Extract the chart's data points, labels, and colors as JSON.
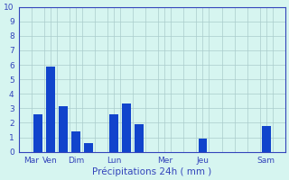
{
  "bar_heights": [
    2.6,
    5.9,
    3.15,
    1.4,
    0.6,
    2.6,
    3.35,
    1.9,
    0.9,
    1.8
  ],
  "bar_positions": [
    1,
    2,
    3,
    4,
    5,
    7,
    8,
    9,
    14,
    19
  ],
  "day_tick_positions": [
    0.5,
    2,
    4,
    7,
    11,
    14,
    19
  ],
  "day_labels": [
    "Mar",
    "Ven",
    "Dim",
    "Lun",
    "Mer",
    "Jeu",
    "Sam"
  ],
  "total_cols": 21,
  "bar_color": "#1144cc",
  "background_color": "#d6f5f0",
  "grid_color": "#aacccc",
  "axis_color": "#3344bb",
  "text_color": "#3344bb",
  "xlabel": "Précipitations 24h ( mm )",
  "ylim": [
    0,
    10
  ],
  "yticks": [
    0,
    1,
    2,
    3,
    4,
    5,
    6,
    7,
    8,
    9,
    10
  ]
}
